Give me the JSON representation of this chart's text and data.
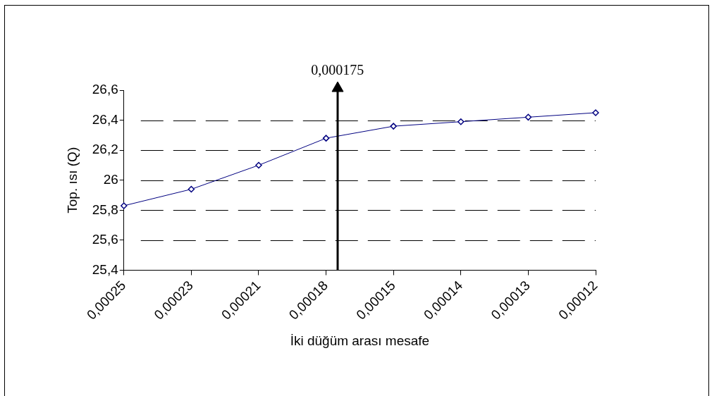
{
  "chart_data": {
    "type": "line",
    "xlabel": "İki düğüm arası mesafe",
    "ylabel": "Top. ısı (Q)",
    "categories": [
      "0,00025",
      "0,00023",
      "0,00021",
      "0,00018",
      "0,00015",
      "0,00014",
      "0,00013",
      "0,00012"
    ],
    "series": [
      {
        "color": "#000080",
        "values": [
          25.83,
          25.94,
          26.1,
          26.28,
          26.36,
          26.39,
          26.42,
          26.45
        ]
      }
    ],
    "ylim": [
      25.4,
      26.6
    ],
    "yticks": [
      {
        "value": 25.4,
        "label": "25,4"
      },
      {
        "value": 25.6,
        "label": "25,6"
      },
      {
        "value": 25.8,
        "label": "25,8"
      },
      26,
      {
        "value": 26.2,
        "label": "26,2"
      },
      {
        "value": 26.4,
        "label": "26,4"
      },
      {
        "value": 26.6,
        "label": "26,6"
      }
    ],
    "grid": "y",
    "legend": false,
    "marker": "diamond",
    "line_style": "solid",
    "annotations": [
      "0,000175"
    ]
  }
}
